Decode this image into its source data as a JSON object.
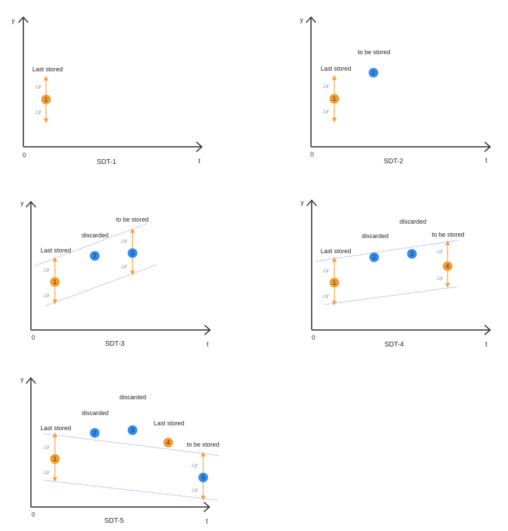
{
  "colors": {
    "stored_point": "#f79a2e",
    "candidate_point": "#2f8cf0",
    "tolerance_arrow": "#f5a040",
    "boundary_line": "#8888ee",
    "axis": "#555555"
  },
  "axis_labels": {
    "y": "y",
    "x": "t",
    "origin": "0"
  },
  "delta_label": "△y",
  "panels": [
    {
      "caption": "SDT-1",
      "labels": {
        "last_stored": "Last stored"
      },
      "points": [
        {
          "n": "1",
          "kind": "stored"
        }
      ]
    },
    {
      "caption": "SDT-2",
      "labels": {
        "last_stored": "Last stored",
        "to_be_stored": "to be stored"
      },
      "points": [
        {
          "n": "1",
          "kind": "stored"
        },
        {
          "n": "2",
          "kind": "candidate"
        }
      ]
    },
    {
      "caption": "SDT-3",
      "labels": {
        "last_stored": "Last stored",
        "discarded": "discarded",
        "to_be_stored": "to be stored"
      },
      "points": [
        {
          "n": "1",
          "kind": "stored"
        },
        {
          "n": "2",
          "kind": "candidate"
        },
        {
          "n": "3",
          "kind": "candidate"
        }
      ]
    },
    {
      "caption": "SDT-4",
      "labels": {
        "last_stored": "Last stored",
        "discarded_1": "discarded",
        "discarded_2": "discarded",
        "to_be_stored": "to be stored"
      },
      "points": [
        {
          "n": "1",
          "kind": "stored"
        },
        {
          "n": "2",
          "kind": "candidate"
        },
        {
          "n": "3",
          "kind": "candidate"
        },
        {
          "n": "4",
          "kind": "stored"
        }
      ]
    },
    {
      "caption": "SDT-5",
      "labels": {
        "last_stored_1": "Last stored",
        "discarded_1": "discarded",
        "discarded_2": "discarded",
        "last_stored_2": "Last stored",
        "to_be_stored": "to be stored"
      },
      "points": [
        {
          "n": "1",
          "kind": "stored"
        },
        {
          "n": "2",
          "kind": "candidate"
        },
        {
          "n": "3",
          "kind": "candidate"
        },
        {
          "n": "4",
          "kind": "stored"
        },
        {
          "n": "5",
          "kind": "candidate"
        }
      ]
    }
  ]
}
